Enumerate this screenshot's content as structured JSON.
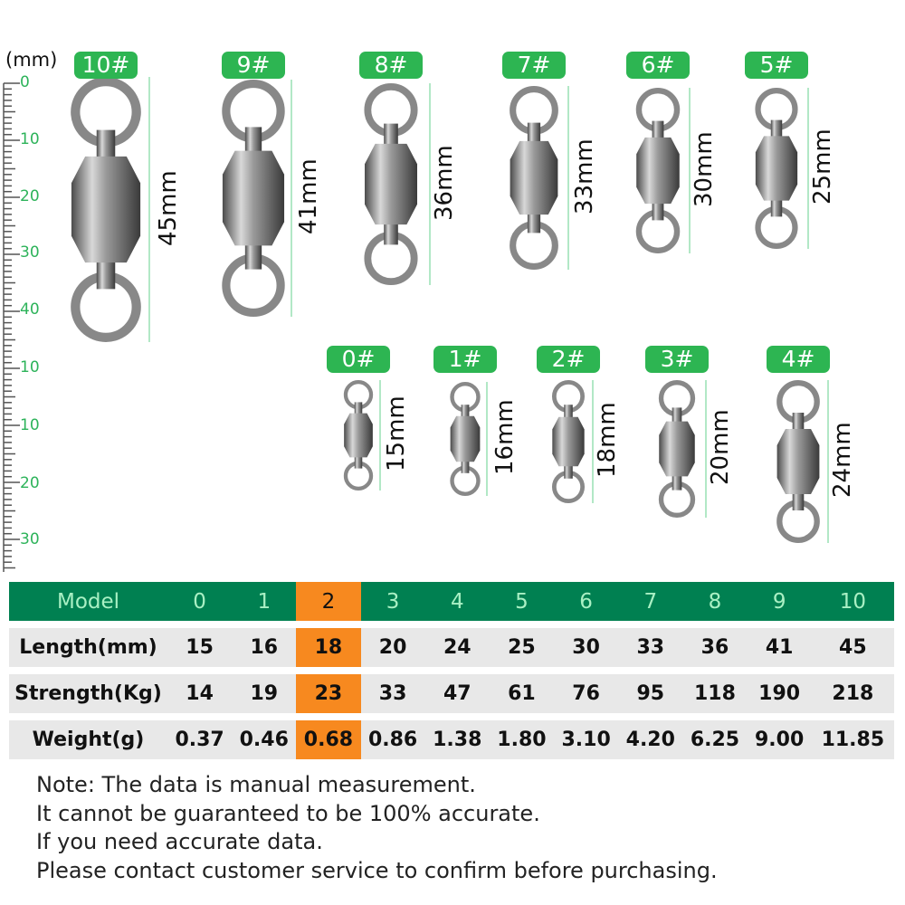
{
  "ruler": {
    "unit": "(mm)",
    "labels": [
      "0",
      "10",
      "20",
      "30",
      "40",
      "10",
      "10",
      "20",
      "30"
    ],
    "color": "#2db35a"
  },
  "swivels": [
    {
      "tag": "10#",
      "length_label": "45mm",
      "length_mm": 45
    },
    {
      "tag": "9#",
      "length_label": "41mm",
      "length_mm": 41
    },
    {
      "tag": "8#",
      "length_label": "36mm",
      "length_mm": 36
    },
    {
      "tag": "7#",
      "length_label": "33mm",
      "length_mm": 33
    },
    {
      "tag": "6#",
      "length_label": "30mm",
      "length_mm": 30
    },
    {
      "tag": "5#",
      "length_label": "25mm",
      "length_mm": 25
    },
    {
      "tag": "0#",
      "length_label": "15mm",
      "length_mm": 15
    },
    {
      "tag": "1#",
      "length_label": "16mm",
      "length_mm": 16
    },
    {
      "tag": "2#",
      "length_label": "18mm",
      "length_mm": 18
    },
    {
      "tag": "3#",
      "length_label": "20mm",
      "length_mm": 20
    },
    {
      "tag": "4#",
      "length_label": "24mm",
      "length_mm": 24
    }
  ],
  "table": {
    "header_color": "#008051",
    "highlight_color": "#f7891f",
    "highlight_column": "2",
    "rows": [
      {
        "label": "Model",
        "values": [
          "0",
          "1",
          "2",
          "3",
          "4",
          "5",
          "6",
          "7",
          "8",
          "9",
          "10"
        ]
      },
      {
        "label": "Length(mm)",
        "values": [
          "15",
          "16",
          "18",
          "20",
          "24",
          "25",
          "30",
          "33",
          "36",
          "41",
          "45"
        ]
      },
      {
        "label": "Strength(Kg)",
        "values": [
          "14",
          "19",
          "23",
          "33",
          "47",
          "61",
          "76",
          "95",
          "118",
          "190",
          "218"
        ]
      },
      {
        "label": "Weight(g)",
        "values": [
          "0.37",
          "0.46",
          "0.68",
          "0.86",
          "1.38",
          "1.80",
          "3.10",
          "4.20",
          "6.25",
          "9.00",
          "11.85"
        ]
      }
    ]
  },
  "notes": [
    "Note: The data is manual measurement.",
    "It cannot be guaranteed to be 100% accurate.",
    "If you need accurate data.",
    "Please contact customer service to confirm before purchasing."
  ]
}
